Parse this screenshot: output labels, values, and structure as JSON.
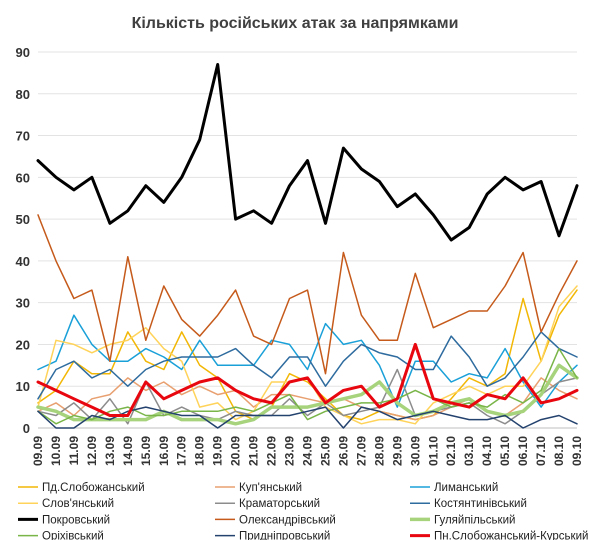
{
  "chart_data": {
    "type": "line",
    "title": "Кількість російських атак за напрямками",
    "xlabel": "",
    "ylabel": "",
    "ylim": [
      0,
      90
    ],
    "yticks": [
      0,
      10,
      20,
      30,
      40,
      50,
      60,
      70,
      80,
      90
    ],
    "grid": true,
    "legend_position": "bottom",
    "x": [
      "09.09",
      "10.09",
      "11.09",
      "12.09",
      "13.09",
      "14.09",
      "15.09",
      "16.09",
      "17.09",
      "18.09",
      "19.09",
      "20.09",
      "21.09",
      "22.09",
      "23.09",
      "24.09",
      "25.09",
      "26.09",
      "27.09",
      "28.09",
      "29.09",
      "30.09",
      "01.10",
      "02.10",
      "03.10",
      "04.10",
      "05.10",
      "06.10",
      "07.10",
      "08.10",
      "09.10"
    ],
    "series": [
      {
        "name": "Пд.Слобожанський",
        "color": "#f2b705",
        "width": 1.5,
        "values": [
          6,
          9,
          16,
          13,
          13,
          23,
          16,
          14,
          23,
          15,
          12,
          4,
          2,
          5,
          13,
          11,
          7,
          3,
          2,
          4,
          3,
          2,
          3,
          7,
          12,
          10,
          13,
          31,
          16,
          27,
          33
        ]
      },
      {
        "name": "Куп'янський",
        "color": "#e8a070",
        "width": 1.5,
        "values": [
          4,
          6,
          3,
          7,
          8,
          12,
          9,
          11,
          8,
          10,
          8,
          9,
          5,
          8,
          8,
          7,
          6,
          7,
          5,
          4,
          3,
          2,
          3,
          5,
          7,
          4,
          3,
          6,
          12,
          9,
          7
        ]
      },
      {
        "name": "Лиманський",
        "color": "#1aa0d8",
        "width": 1.5,
        "values": [
          14,
          16,
          27,
          20,
          16,
          16,
          19,
          17,
          14,
          21,
          15,
          15,
          15,
          21,
          20,
          14,
          25,
          20,
          21,
          15,
          5,
          16,
          16,
          11,
          13,
          12,
          19,
          11,
          5,
          11,
          15
        ]
      },
      {
        "name": "Слов'янський",
        "color": "#ffd35a",
        "width": 1.5,
        "values": [
          5,
          21,
          20,
          18,
          20,
          21,
          24,
          19,
          16,
          5,
          6,
          2,
          4,
          11,
          11,
          12,
          5,
          3,
          1,
          2,
          2,
          1,
          6,
          8,
          10,
          8,
          10,
          10,
          16,
          29,
          34
        ]
      },
      {
        "name": "Краматорський",
        "color": "#8c8c8c",
        "width": 1.5,
        "values": [
          4,
          3,
          6,
          2,
          7,
          1,
          11,
          3,
          5,
          3,
          2,
          4,
          3,
          3,
          7,
          3,
          6,
          3,
          4,
          5,
          14,
          3,
          4,
          5,
          6,
          3,
          1,
          4,
          8,
          11,
          12
        ]
      },
      {
        "name": "Костянтинівський",
        "color": "#2e6b9e",
        "width": 1.5,
        "values": [
          7,
          14,
          16,
          12,
          14,
          10,
          14,
          16,
          17,
          17,
          17,
          19,
          15,
          12,
          17,
          17,
          10,
          16,
          20,
          18,
          17,
          14,
          14,
          22,
          17,
          10,
          12,
          17,
          23,
          19,
          17
        ]
      },
      {
        "name": "Покровський",
        "color": "#000000",
        "width": 3,
        "values": [
          64,
          60,
          57,
          60,
          49,
          52,
          58,
          54,
          60,
          69,
          87,
          50,
          52,
          49,
          58,
          64,
          49,
          67,
          62,
          59,
          53,
          56,
          51,
          45,
          48,
          56,
          60,
          57,
          59,
          46,
          58
        ]
      },
      {
        "name": "Олександрівський",
        "color": "#c55a1b",
        "width": 1.5,
        "values": [
          51,
          40,
          31,
          33,
          16,
          41,
          21,
          34,
          26,
          22,
          27,
          33,
          22,
          20,
          31,
          33,
          13,
          42,
          27,
          21,
          21,
          37,
          24,
          26,
          28,
          28,
          34,
          42,
          23,
          32,
          40
        ]
      },
      {
        "name": "Гуляйпільський",
        "color": "#a6d37c",
        "width": 3.5,
        "values": [
          5,
          4,
          2,
          2,
          2,
          2,
          2,
          4,
          2,
          2,
          2,
          1,
          2,
          5,
          5,
          5,
          6,
          7,
          8,
          11,
          6,
          3,
          4,
          6,
          7,
          4,
          3,
          4,
          8,
          15,
          12
        ]
      },
      {
        "name": "Оріхівський",
        "color": "#79b548",
        "width": 1.5,
        "values": [
          4,
          1,
          3,
          2,
          4,
          5,
          3,
          3,
          4,
          4,
          4,
          5,
          4,
          6,
          8,
          2,
          4,
          5,
          6,
          6,
          7,
          9,
          7,
          5,
          6,
          5,
          8,
          6,
          9,
          19,
          12
        ]
      },
      {
        "name": "Придніпровський",
        "color": "#24426e",
        "width": 1.5,
        "values": [
          4,
          0,
          0,
          3,
          2,
          4,
          5,
          4,
          3,
          3,
          0,
          3,
          3,
          3,
          3,
          4,
          5,
          0,
          5,
          4,
          2,
          3,
          4,
          3,
          2,
          2,
          3,
          0,
          2,
          3,
          1
        ]
      },
      {
        "name": "Пн.Слобожанський-Курський",
        "color": "#e8060f",
        "width": 3,
        "values": [
          11,
          9,
          7,
          5,
          3,
          3,
          11,
          7,
          9,
          11,
          12,
          9,
          7,
          6,
          11,
          12,
          6,
          9,
          10,
          5,
          7,
          20,
          7,
          6,
          5,
          8,
          7,
          12,
          6,
          7,
          9
        ]
      }
    ]
  }
}
